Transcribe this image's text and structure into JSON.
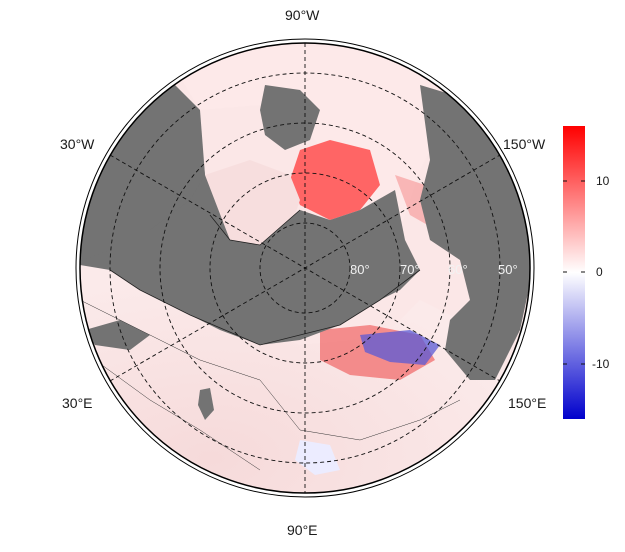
{
  "map": {
    "projection": "north polar stereographic",
    "longitude_labels": {
      "top": "90°W",
      "bottom": "90°E",
      "upper_left": "30°W",
      "upper_right": "150°W",
      "lower_left": "30°E",
      "lower_right": "150°E"
    },
    "latitude_labels": [
      "80°",
      "70°",
      "60°",
      "50°"
    ],
    "land_color": "#737373",
    "ocean_fill_color": "#ffffff",
    "graticule_style": "dashed"
  },
  "colorbar": {
    "colormap": "blue-white-red diverging",
    "colors": [
      "#0000cc",
      "#ffffff",
      "#ff0000"
    ],
    "range": [
      -16,
      16
    ],
    "ticks": [
      "10",
      "0",
      "-10"
    ]
  }
}
